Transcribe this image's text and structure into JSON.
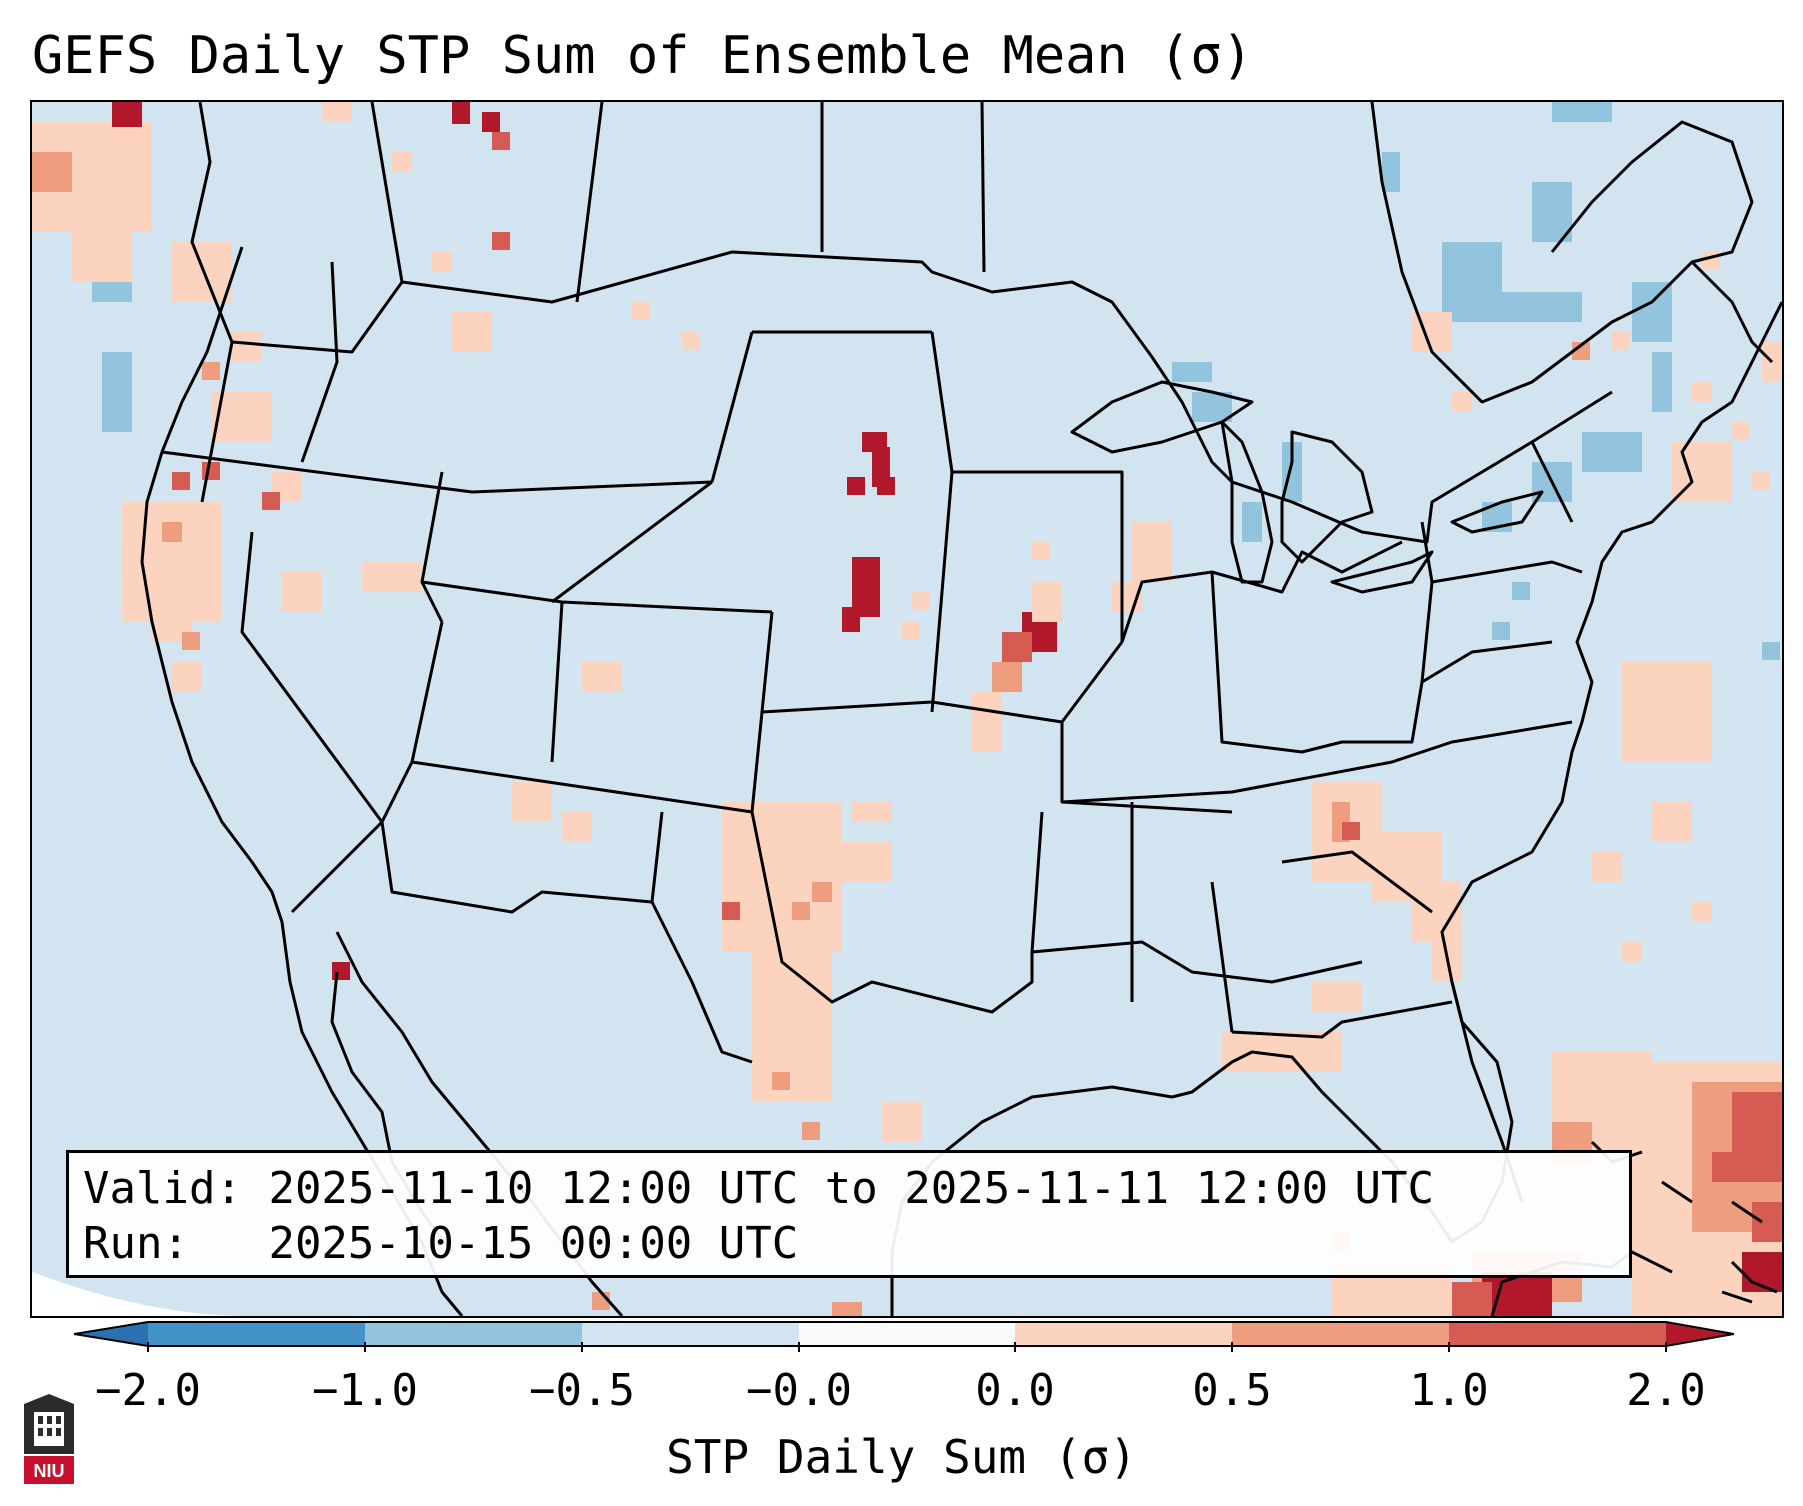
{
  "title": "GEFS Daily STP Sum of Ensemble Mean (σ)",
  "info": {
    "valid_label": "Valid:",
    "valid_value": "2025-11-10 12:00 UTC to 2025-11-11 12:00 UTC",
    "run_label": "Run:",
    "run_value": "2025-10-15 00:00 UTC"
  },
  "colorbar": {
    "label": "STP Daily Sum (σ)",
    "ticks": [
      "−2.0",
      "−1.0",
      "−0.5",
      "−0.0",
      "0.0",
      "0.5",
      "1.0",
      "2.0"
    ],
    "colors": [
      "#2b70b0",
      "#4392c9",
      "#92c4de",
      "#d2e4ef",
      "#f9f9f9",
      "#fcd3be",
      "#ee9d7e",
      "#d65c53",
      "#b2182b"
    ]
  },
  "logo": {
    "text": "NIU"
  },
  "map": {
    "background_color": "#d2e4ef",
    "boundary_color": "#000000"
  }
}
